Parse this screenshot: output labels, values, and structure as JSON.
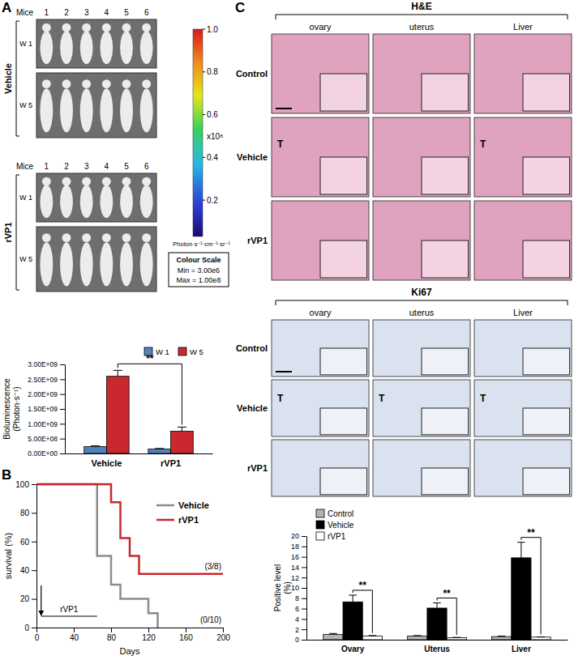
{
  "chart_data": [
    {
      "type": "bar",
      "categories": [
        "Vehicle",
        "rVP1"
      ],
      "ylabel": "Bioluminescence (Photon·s⁻¹)",
      "ylim": [
        0,
        3000000000
      ],
      "yticks": [
        {
          "value": 0,
          "label": "0.00E+00"
        },
        {
          "value": 500000000,
          "label": "5.00E+08"
        },
        {
          "value": 1000000000,
          "label": "1.00E+09"
        },
        {
          "value": 1500000000,
          "label": "1.50E+09"
        },
        {
          "value": 2000000000,
          "label": "2.00E+09"
        },
        {
          "value": 2500000000,
          "label": "2.50E+09"
        },
        {
          "value": 3000000000,
          "label": "3.00E+09"
        }
      ],
      "series": [
        {
          "name": "W 1",
          "color": "#4f81bd",
          "values": [
            230000000,
            150000000
          ],
          "errors": [
            25000000,
            20000000
          ]
        },
        {
          "name": "W 5",
          "color": "#c8282e",
          "values": [
            2600000000,
            750000000
          ],
          "errors": [
            200000000,
            140000000
          ]
        }
      ],
      "legend": "top-right",
      "annotations": [
        {
          "text": "**",
          "categories": [
            "Vehicle",
            "rVP1"
          ],
          "series": [
            "W 5"
          ]
        }
      ]
    },
    {
      "type": "line",
      "xlabel": "Days",
      "ylabel": "survival (%)",
      "xlim": [
        0,
        200
      ],
      "xticks": [
        0,
        40,
        80,
        120,
        160,
        200
      ],
      "ylim": [
        0,
        100
      ],
      "yticks": [
        0,
        20,
        40,
        60,
        80,
        100
      ],
      "line_style": "step",
      "legend": "top-right",
      "series": [
        {
          "name": "Vehicle",
          "color": "#8c8c8c",
          "x": [
            0,
            65,
            80,
            90,
            120,
            130
          ],
          "values": [
            100,
            50,
            30,
            20,
            10,
            0
          ],
          "end_label": "(0/10)"
        },
        {
          "name": "rVP1",
          "color": "#c8282e",
          "x": [
            0,
            80,
            90,
            100,
            110,
            200
          ],
          "values": [
            100,
            87.5,
            62.5,
            50,
            37.5,
            37.5
          ],
          "end_label": "(3/8)"
        }
      ],
      "treatment": {
        "label": "rVP1",
        "start": 5,
        "end": 65
      }
    },
    {
      "type": "bar",
      "categories": [
        "Ovary",
        "Uterus",
        "Liver"
      ],
      "ylabel": "Positive level (%)",
      "ylim": [
        0,
        20
      ],
      "yticks": [
        0,
        2,
        4,
        6,
        8,
        10,
        12,
        14,
        16,
        18,
        20
      ],
      "series": [
        {
          "name": "Control",
          "color": "#b3b3b3",
          "values": [
            1.0,
            0.7,
            0.6
          ],
          "errors": [
            0.2,
            0.1,
            0.1
          ]
        },
        {
          "name": "Vehicle",
          "color": "#000000",
          "values": [
            7.3,
            6.1,
            15.8
          ],
          "errors": [
            1.3,
            1.0,
            3.0
          ]
        },
        {
          "name": "rVP1",
          "color": "#ffffff",
          "values": [
            0.7,
            0.4,
            0.5
          ],
          "errors": [
            0.1,
            0.05,
            0.05
          ]
        }
      ],
      "legend": "top-left",
      "annotations": [
        {
          "text": "**",
          "categories": [
            "Ovary"
          ],
          "series": [
            "Vehicle",
            "rVP1"
          ]
        },
        {
          "text": "**",
          "categories": [
            "Uterus"
          ],
          "series": [
            "Vehicle",
            "rVP1"
          ]
        },
        {
          "text": "**",
          "categories": [
            "Liver"
          ],
          "series": [
            "Vehicle",
            "rVP1"
          ]
        }
      ]
    }
  ],
  "figure": {
    "panel_labels": [
      "A",
      "B",
      "C"
    ],
    "panel_a": {
      "mice_label": "Mice",
      "mice": [
        "1",
        "2",
        "3",
        "4",
        "5",
        "6"
      ],
      "groups": [
        "Vehicle",
        "rVP1"
      ],
      "weeks": [
        "W 1",
        "W 5"
      ],
      "colour_scale": {
        "range": [
          0.03,
          1
        ],
        "ticks": [
          0.2,
          0.4,
          0.6,
          0.8,
          {
            "value": 1,
            "label": "1.0"
          }
        ],
        "multiplier": "x10⁸",
        "unit": "Photon·s⁻¹·cm⁻¹·sr⁻¹",
        "box_title": "Colour Scale",
        "min": "Min = 3.00e6",
        "max": "Max = 1.00e8"
      }
    },
    "panel_c": {
      "he": {
        "title": "H&E",
        "columns": [
          "ovary",
          "uterus",
          "Liver"
        ],
        "rows": [
          "Control",
          "Vehicle",
          "rVP1"
        ],
        "marks": [
          [
            null,
            null,
            null
          ],
          [
            "T",
            null,
            "T"
          ],
          [
            null,
            null,
            null
          ]
        ]
      },
      "ki67": {
        "title": "Ki67",
        "columns": [
          "ovary",
          "uterus",
          "Liver"
        ],
        "rows": [
          "Control",
          "Vehicle",
          "rVP1"
        ],
        "marks": [
          [
            null,
            null,
            null
          ],
          [
            "T",
            "T",
            "T"
          ],
          [
            null,
            null,
            null
          ]
        ]
      }
    }
  }
}
